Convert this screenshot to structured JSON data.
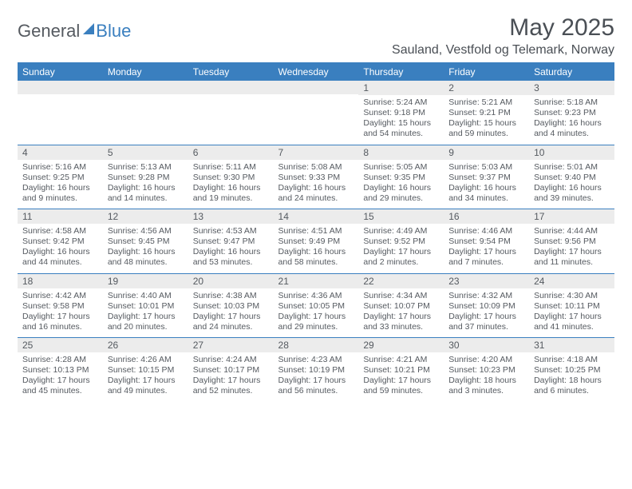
{
  "logo": {
    "general": "General",
    "blue": "Blue"
  },
  "title": {
    "month": "May 2025",
    "location": "Sauland, Vestfold og Telemark, Norway"
  },
  "dayHeaders": [
    "Sunday",
    "Monday",
    "Tuesday",
    "Wednesday",
    "Thursday",
    "Friday",
    "Saturday"
  ],
  "colors": {
    "accent": "#3a7fbf",
    "text": "#555a60",
    "dayBg": "#ececec"
  },
  "weeks": [
    [
      {
        "n": "",
        "sr": "",
        "ss": "",
        "dl": ""
      },
      {
        "n": "",
        "sr": "",
        "ss": "",
        "dl": ""
      },
      {
        "n": "",
        "sr": "",
        "ss": "",
        "dl": ""
      },
      {
        "n": "",
        "sr": "",
        "ss": "",
        "dl": ""
      },
      {
        "n": "1",
        "sr": "Sunrise: 5:24 AM",
        "ss": "Sunset: 9:18 PM",
        "dl": "Daylight: 15 hours and 54 minutes."
      },
      {
        "n": "2",
        "sr": "Sunrise: 5:21 AM",
        "ss": "Sunset: 9:21 PM",
        "dl": "Daylight: 15 hours and 59 minutes."
      },
      {
        "n": "3",
        "sr": "Sunrise: 5:18 AM",
        "ss": "Sunset: 9:23 PM",
        "dl": "Daylight: 16 hours and 4 minutes."
      }
    ],
    [
      {
        "n": "4",
        "sr": "Sunrise: 5:16 AM",
        "ss": "Sunset: 9:25 PM",
        "dl": "Daylight: 16 hours and 9 minutes."
      },
      {
        "n": "5",
        "sr": "Sunrise: 5:13 AM",
        "ss": "Sunset: 9:28 PM",
        "dl": "Daylight: 16 hours and 14 minutes."
      },
      {
        "n": "6",
        "sr": "Sunrise: 5:11 AM",
        "ss": "Sunset: 9:30 PM",
        "dl": "Daylight: 16 hours and 19 minutes."
      },
      {
        "n": "7",
        "sr": "Sunrise: 5:08 AM",
        "ss": "Sunset: 9:33 PM",
        "dl": "Daylight: 16 hours and 24 minutes."
      },
      {
        "n": "8",
        "sr": "Sunrise: 5:05 AM",
        "ss": "Sunset: 9:35 PM",
        "dl": "Daylight: 16 hours and 29 minutes."
      },
      {
        "n": "9",
        "sr": "Sunrise: 5:03 AM",
        "ss": "Sunset: 9:37 PM",
        "dl": "Daylight: 16 hours and 34 minutes."
      },
      {
        "n": "10",
        "sr": "Sunrise: 5:01 AM",
        "ss": "Sunset: 9:40 PM",
        "dl": "Daylight: 16 hours and 39 minutes."
      }
    ],
    [
      {
        "n": "11",
        "sr": "Sunrise: 4:58 AM",
        "ss": "Sunset: 9:42 PM",
        "dl": "Daylight: 16 hours and 44 minutes."
      },
      {
        "n": "12",
        "sr": "Sunrise: 4:56 AM",
        "ss": "Sunset: 9:45 PM",
        "dl": "Daylight: 16 hours and 48 minutes."
      },
      {
        "n": "13",
        "sr": "Sunrise: 4:53 AM",
        "ss": "Sunset: 9:47 PM",
        "dl": "Daylight: 16 hours and 53 minutes."
      },
      {
        "n": "14",
        "sr": "Sunrise: 4:51 AM",
        "ss": "Sunset: 9:49 PM",
        "dl": "Daylight: 16 hours and 58 minutes."
      },
      {
        "n": "15",
        "sr": "Sunrise: 4:49 AM",
        "ss": "Sunset: 9:52 PM",
        "dl": "Daylight: 17 hours and 2 minutes."
      },
      {
        "n": "16",
        "sr": "Sunrise: 4:46 AM",
        "ss": "Sunset: 9:54 PM",
        "dl": "Daylight: 17 hours and 7 minutes."
      },
      {
        "n": "17",
        "sr": "Sunrise: 4:44 AM",
        "ss": "Sunset: 9:56 PM",
        "dl": "Daylight: 17 hours and 11 minutes."
      }
    ],
    [
      {
        "n": "18",
        "sr": "Sunrise: 4:42 AM",
        "ss": "Sunset: 9:58 PM",
        "dl": "Daylight: 17 hours and 16 minutes."
      },
      {
        "n": "19",
        "sr": "Sunrise: 4:40 AM",
        "ss": "Sunset: 10:01 PM",
        "dl": "Daylight: 17 hours and 20 minutes."
      },
      {
        "n": "20",
        "sr": "Sunrise: 4:38 AM",
        "ss": "Sunset: 10:03 PM",
        "dl": "Daylight: 17 hours and 24 minutes."
      },
      {
        "n": "21",
        "sr": "Sunrise: 4:36 AM",
        "ss": "Sunset: 10:05 PM",
        "dl": "Daylight: 17 hours and 29 minutes."
      },
      {
        "n": "22",
        "sr": "Sunrise: 4:34 AM",
        "ss": "Sunset: 10:07 PM",
        "dl": "Daylight: 17 hours and 33 minutes."
      },
      {
        "n": "23",
        "sr": "Sunrise: 4:32 AM",
        "ss": "Sunset: 10:09 PM",
        "dl": "Daylight: 17 hours and 37 minutes."
      },
      {
        "n": "24",
        "sr": "Sunrise: 4:30 AM",
        "ss": "Sunset: 10:11 PM",
        "dl": "Daylight: 17 hours and 41 minutes."
      }
    ],
    [
      {
        "n": "25",
        "sr": "Sunrise: 4:28 AM",
        "ss": "Sunset: 10:13 PM",
        "dl": "Daylight: 17 hours and 45 minutes."
      },
      {
        "n": "26",
        "sr": "Sunrise: 4:26 AM",
        "ss": "Sunset: 10:15 PM",
        "dl": "Daylight: 17 hours and 49 minutes."
      },
      {
        "n": "27",
        "sr": "Sunrise: 4:24 AM",
        "ss": "Sunset: 10:17 PM",
        "dl": "Daylight: 17 hours and 52 minutes."
      },
      {
        "n": "28",
        "sr": "Sunrise: 4:23 AM",
        "ss": "Sunset: 10:19 PM",
        "dl": "Daylight: 17 hours and 56 minutes."
      },
      {
        "n": "29",
        "sr": "Sunrise: 4:21 AM",
        "ss": "Sunset: 10:21 PM",
        "dl": "Daylight: 17 hours and 59 minutes."
      },
      {
        "n": "30",
        "sr": "Sunrise: 4:20 AM",
        "ss": "Sunset: 10:23 PM",
        "dl": "Daylight: 18 hours and 3 minutes."
      },
      {
        "n": "31",
        "sr": "Sunrise: 4:18 AM",
        "ss": "Sunset: 10:25 PM",
        "dl": "Daylight: 18 hours and 6 minutes."
      }
    ]
  ]
}
